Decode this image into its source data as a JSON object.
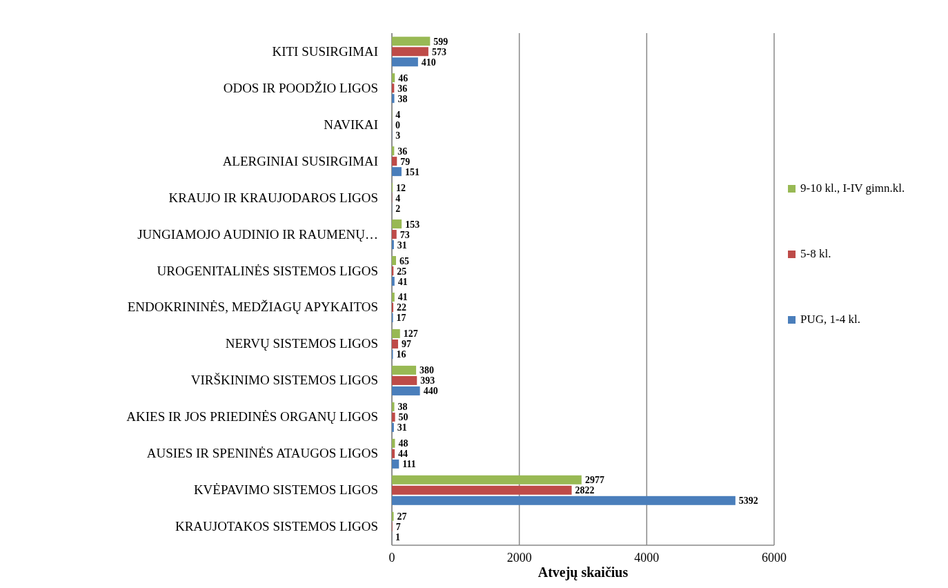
{
  "chart_data": {
    "type": "bar",
    "orientation": "horizontal",
    "xlabel": "Atvejų skaičius",
    "categories": [
      "KITI  SUSIRGIMAI",
      "ODOS IR POODŽIO LIGOS",
      "NAVIKAI",
      "ALERGINIAI SUSIRGIMAI",
      "KRAUJO IR KRAUJODAROS LIGOS",
      "JUNGIAMOJO AUDINIO IR RAUMENŲ…",
      "UROGENITALINĖS SISTEMOS LIGOS",
      "ENDOKRININĖS, MEDŽIAGŲ APYKAITOS",
      "NERVŲ SISTEMOS LIGOS",
      "VIRŠKINIMO SISTEMOS LIGOS",
      "AKIES IR JOS PRIEDINĖS ORGANŲ LIGOS",
      "AUSIES IR SPENINĖS ATAUGOS LIGOS",
      "KVĖPAVIMO SISTEMOS LIGOS",
      "KRAUJOTAKOS SISTEMOS LIGOS"
    ],
    "series": [
      {
        "name": "PUG, 1-4 kl.",
        "color": "#4a7ebb",
        "values": [
          410,
          38,
          3,
          151,
          2,
          31,
          41,
          17,
          16,
          440,
          31,
          111,
          5392,
          1
        ]
      },
      {
        "name": "5-8 kl.",
        "color": "#be4b48",
        "values": [
          573,
          36,
          0,
          79,
          4,
          73,
          25,
          22,
          97,
          393,
          50,
          44,
          2822,
          7
        ]
      },
      {
        "name": "9-10 kl., I-IV gimn.kl.",
        "color": "#98b954",
        "values": [
          599,
          46,
          4,
          36,
          12,
          153,
          65,
          41,
          127,
          380,
          38,
          48,
          2977,
          27
        ]
      }
    ],
    "xlim": [
      0,
      6000
    ],
    "xticks": [
      0,
      2000,
      4000,
      6000
    ],
    "grid": "x",
    "legend": "right",
    "data_labels": true
  }
}
